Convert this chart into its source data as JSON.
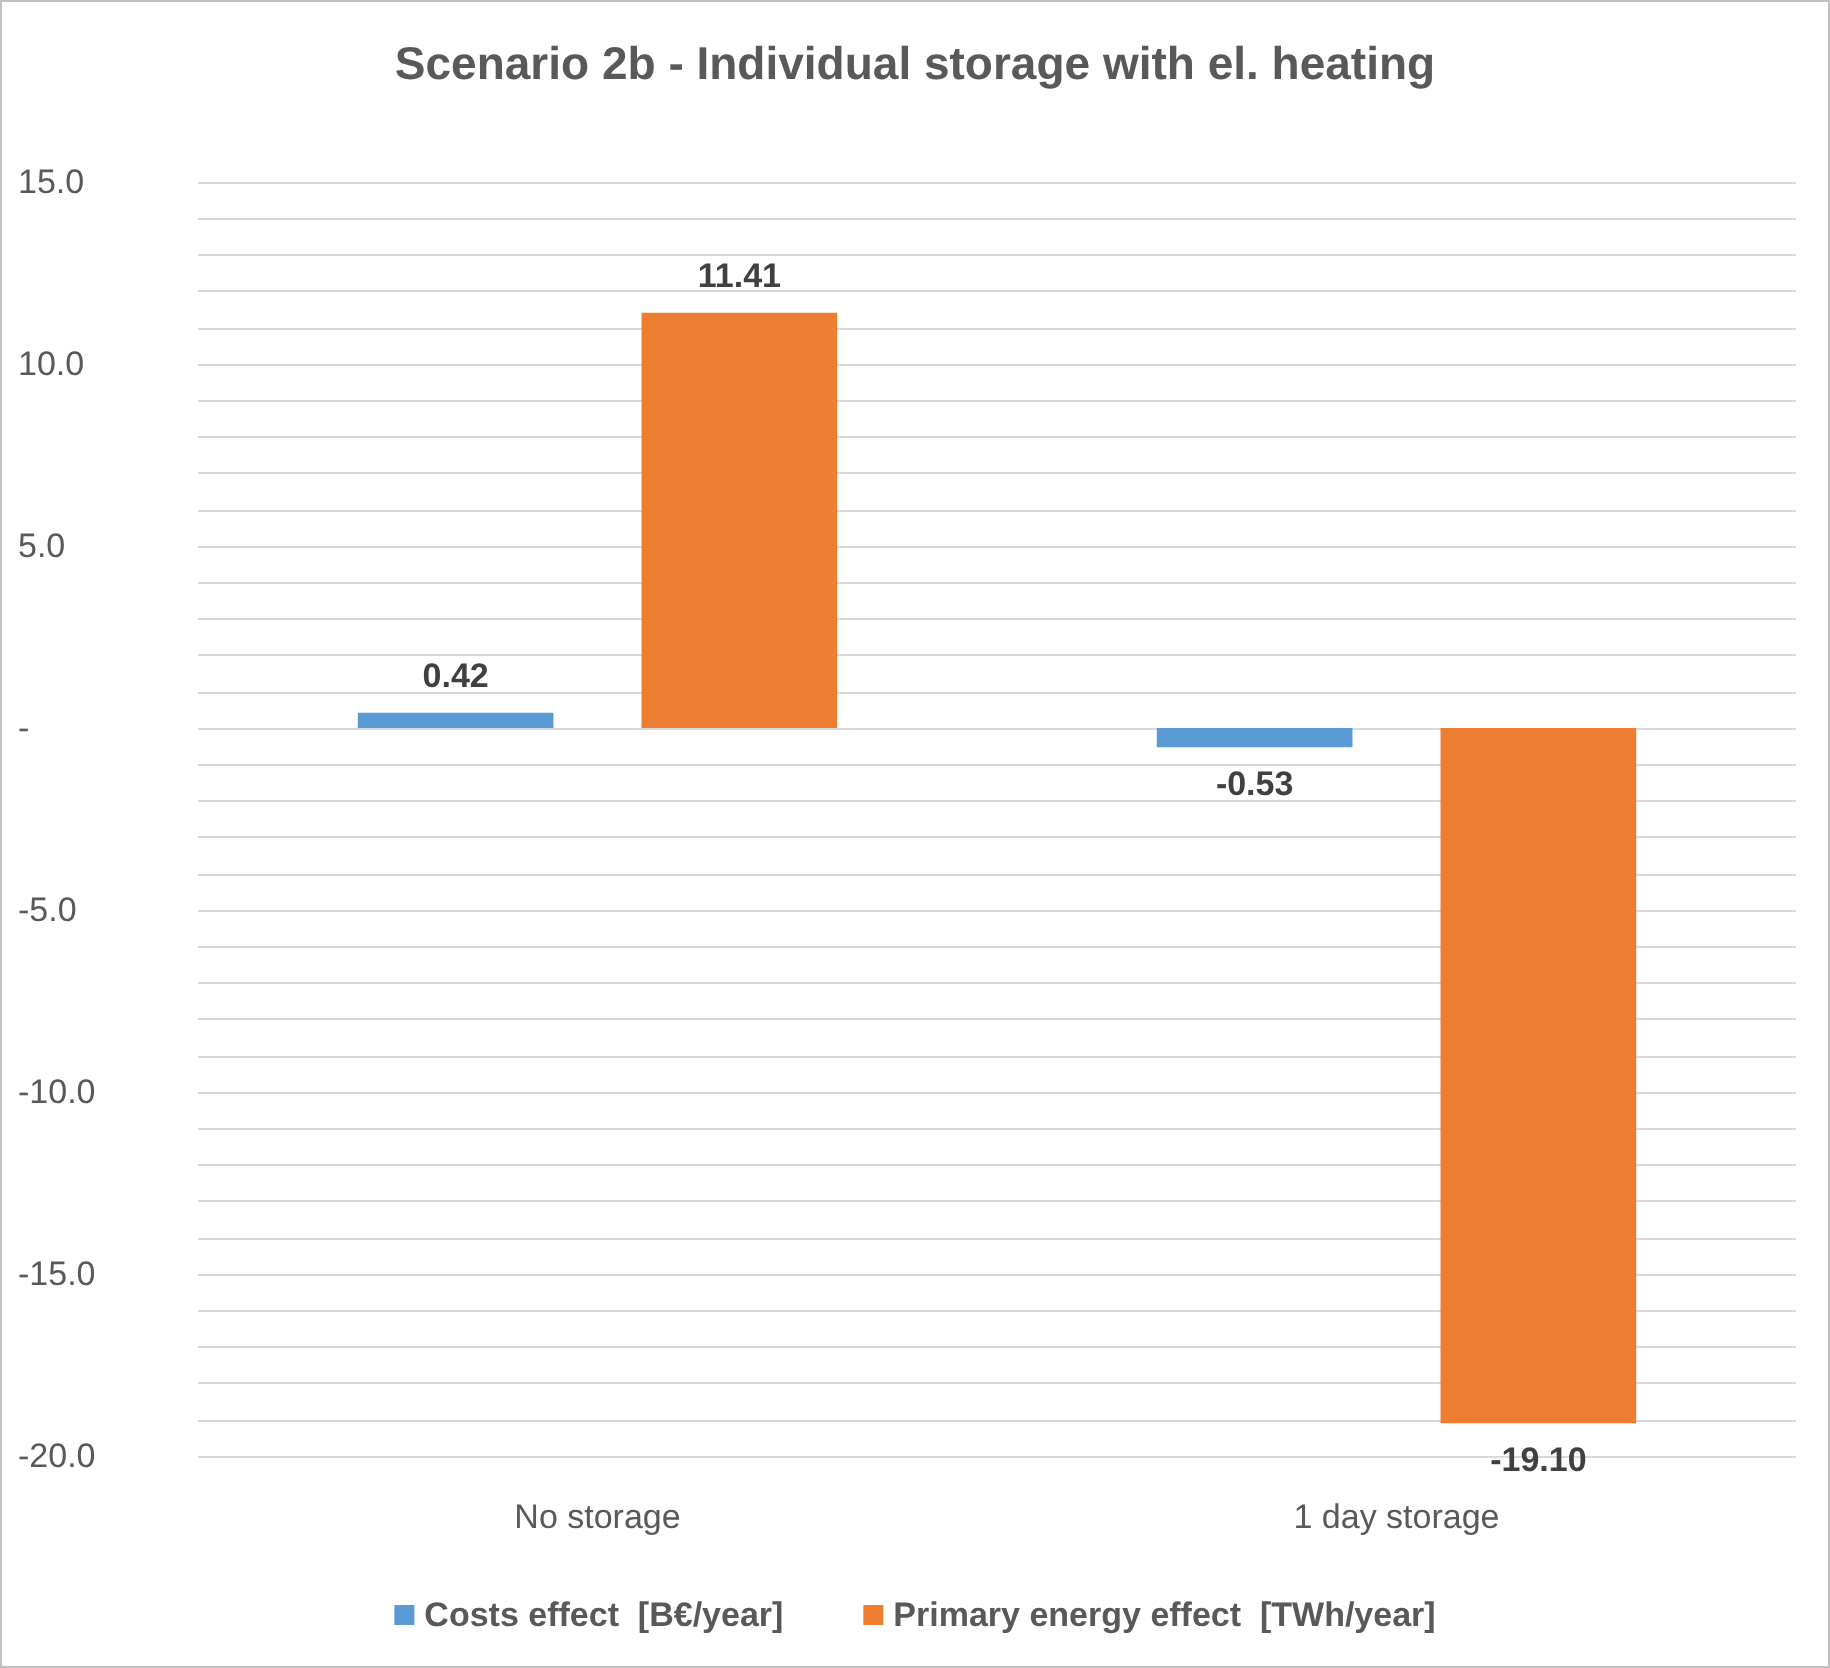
{
  "chart_data": {
    "type": "bar",
    "title": "Scenario 2b - Individual storage with el. heating",
    "categories": [
      "No storage",
      "1 day storage"
    ],
    "series": [
      {
        "name": "Costs effect  [B€/year]",
        "color": "#5b9bd5",
        "values": [
          0.42,
          -0.53
        ],
        "value_labels": [
          "0.42",
          "-0.53"
        ]
      },
      {
        "name": "Primary energy effect  [TWh/year]",
        "color": "#ed7d31",
        "values": [
          11.41,
          -19.1
        ],
        "value_labels": [
          "11.41",
          "-19.10"
        ]
      }
    ],
    "ylim": [
      -20,
      15
    ],
    "yticks": [
      {
        "value": -20,
        "label": "-20.0"
      },
      {
        "value": -19,
        "label": null
      },
      {
        "value": -18,
        "label": null
      },
      {
        "value": -17,
        "label": null
      },
      {
        "value": -16,
        "label": null
      },
      {
        "value": -15,
        "label": "-15.0"
      },
      {
        "value": -14,
        "label": null
      },
      {
        "value": -13,
        "label": null
      },
      {
        "value": -12,
        "label": null
      },
      {
        "value": -11,
        "label": null
      },
      {
        "value": -10,
        "label": "-10.0"
      },
      {
        "value": -9,
        "label": null
      },
      {
        "value": -8,
        "label": null
      },
      {
        "value": -7,
        "label": null
      },
      {
        "value": -6,
        "label": null
      },
      {
        "value": -5,
        "label": "-5.0"
      },
      {
        "value": -4,
        "label": null
      },
      {
        "value": -3,
        "label": null
      },
      {
        "value": -2,
        "label": null
      },
      {
        "value": -1,
        "label": null
      },
      {
        "value": 0,
        "label": "-"
      },
      {
        "value": 1,
        "label": null
      },
      {
        "value": 2,
        "label": null
      },
      {
        "value": 3,
        "label": null
      },
      {
        "value": 4,
        "label": null
      },
      {
        "value": 5,
        "label": "5.0"
      },
      {
        "value": 6,
        "label": null
      },
      {
        "value": 7,
        "label": null
      },
      {
        "value": 8,
        "label": null
      },
      {
        "value": 9,
        "label": null
      },
      {
        "value": 10,
        "label": "10.0"
      },
      {
        "value": 11,
        "label": null
      },
      {
        "value": 12,
        "label": null
      },
      {
        "value": 13,
        "label": null
      },
      {
        "value": 14,
        "label": null
      },
      {
        "value": 15,
        "label": "15.0"
      }
    ],
    "grid": "y",
    "legend": "bottom"
  }
}
